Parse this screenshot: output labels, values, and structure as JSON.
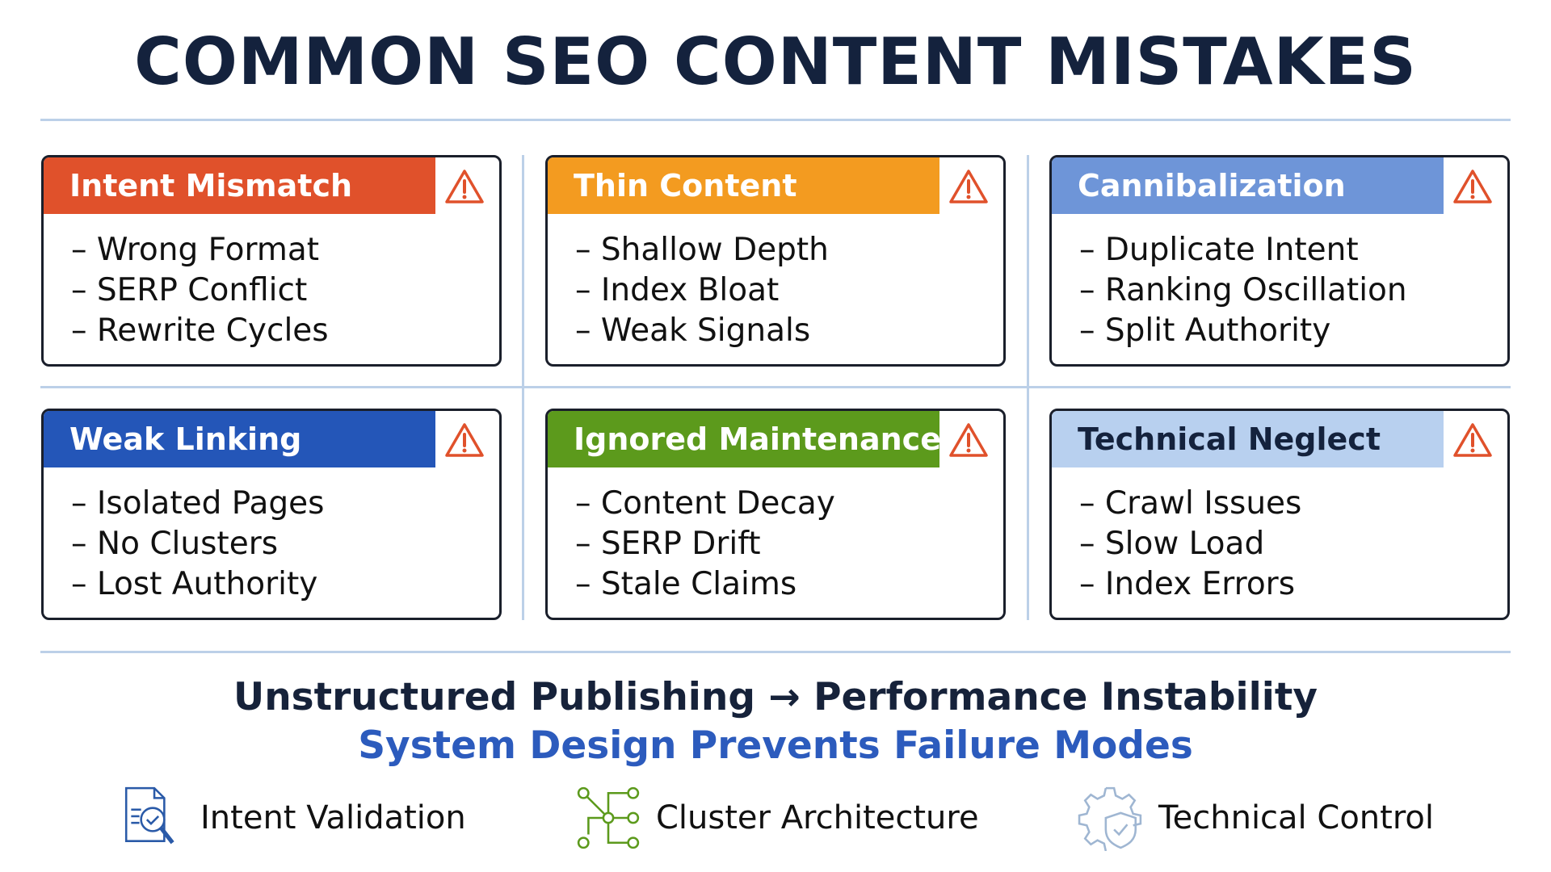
{
  "title": "COMMON SEO CONTENT MISTAKES",
  "cards": [
    {
      "title": "Intent Mismatch",
      "color": "#e0512b",
      "text_color": "#ffffff",
      "items": [
        "– Wrong Format",
        "– SERP Conflict",
        "– Rewrite Cycles"
      ]
    },
    {
      "title": "Thin Content",
      "color": "#f39b20",
      "text_color": "#ffffff",
      "items": [
        "– Shallow Depth",
        "– Index Bloat",
        "– Weak Signals"
      ]
    },
    {
      "title": "Cannibalization",
      "color": "#6e95d8",
      "text_color": "#ffffff",
      "items": [
        "– Duplicate Intent",
        "– Ranking Oscillation",
        "– Split Authority"
      ]
    },
    {
      "title": "Weak Linking",
      "color": "#2456b8",
      "text_color": "#ffffff",
      "items": [
        "– Isolated Pages",
        "– No Clusters",
        "– Lost Authority"
      ]
    },
    {
      "title": "Ignored Maintenance",
      "color": "#5c9a1c",
      "text_color": "#ffffff",
      "items": [
        "– Content Decay",
        "– SERP Drift",
        "– Stale Claims"
      ]
    },
    {
      "title": "Technical Neglect",
      "color": "#b8d0ef",
      "text_color": "#14223d",
      "items": [
        "– Crawl Issues",
        "– Slow Load",
        "– Index Errors"
      ]
    }
  ],
  "warning_icon": "warning-triangle-icon",
  "warning_color": "#e0512b",
  "tagline": "Unstructured Publishing → Performance Instability",
  "subtagline": "System Design Prevents Failure Modes",
  "subtagline_color": "#2c5bbd",
  "features": [
    {
      "label": "Intent Validation",
      "icon": "document-search-icon",
      "color": "#2a5aa8"
    },
    {
      "label": "Cluster Architecture",
      "icon": "network-nodes-icon",
      "color": "#5c9a1c"
    },
    {
      "label": "Technical Control",
      "icon": "gear-shield-icon",
      "color": "#9fb6d2"
    }
  ]
}
